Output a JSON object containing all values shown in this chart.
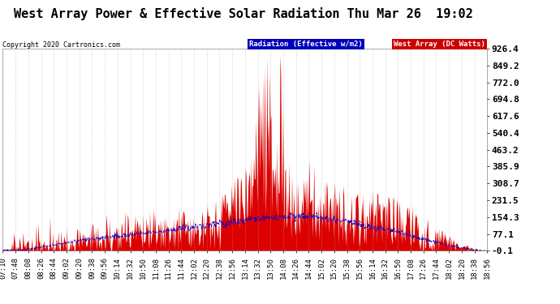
{
  "title": "West Array Power & Effective Solar Radiation Thu Mar 26  19:02",
  "copyright": "Copyright 2020 Cartronics.com",
  "legend_radiation": "Radiation (Effective w/m2)",
  "legend_west": "West Array (DC Watts)",
  "legend_radiation_bg": "#0000bb",
  "legend_west_bg": "#cc0000",
  "ylabel_right_ticks": [
    926.4,
    849.2,
    772.0,
    694.8,
    617.6,
    540.4,
    463.2,
    385.9,
    308.7,
    231.5,
    154.3,
    77.1,
    -0.1
  ],
  "ymin": -0.1,
  "ymax": 926.4,
  "bg_color": "#ffffff",
  "plot_bg_color": "#ffffff",
  "grid_color": "#aaaaaa",
  "area_color": "#dd0000",
  "line_color": "#0000cc",
  "title_fontsize": 11,
  "tick_fontsize": 6.5,
  "x_labels": [
    "07:10",
    "07:48",
    "08:08",
    "08:26",
    "08:44",
    "09:02",
    "09:20",
    "09:38",
    "09:56",
    "10:14",
    "10:32",
    "10:50",
    "11:08",
    "11:26",
    "11:44",
    "12:02",
    "12:20",
    "12:38",
    "12:56",
    "13:14",
    "13:32",
    "13:50",
    "14:08",
    "14:26",
    "14:44",
    "15:02",
    "15:20",
    "15:38",
    "15:56",
    "16:14",
    "16:32",
    "16:50",
    "17:08",
    "17:26",
    "17:44",
    "18:02",
    "18:20",
    "18:38",
    "18:56"
  ]
}
